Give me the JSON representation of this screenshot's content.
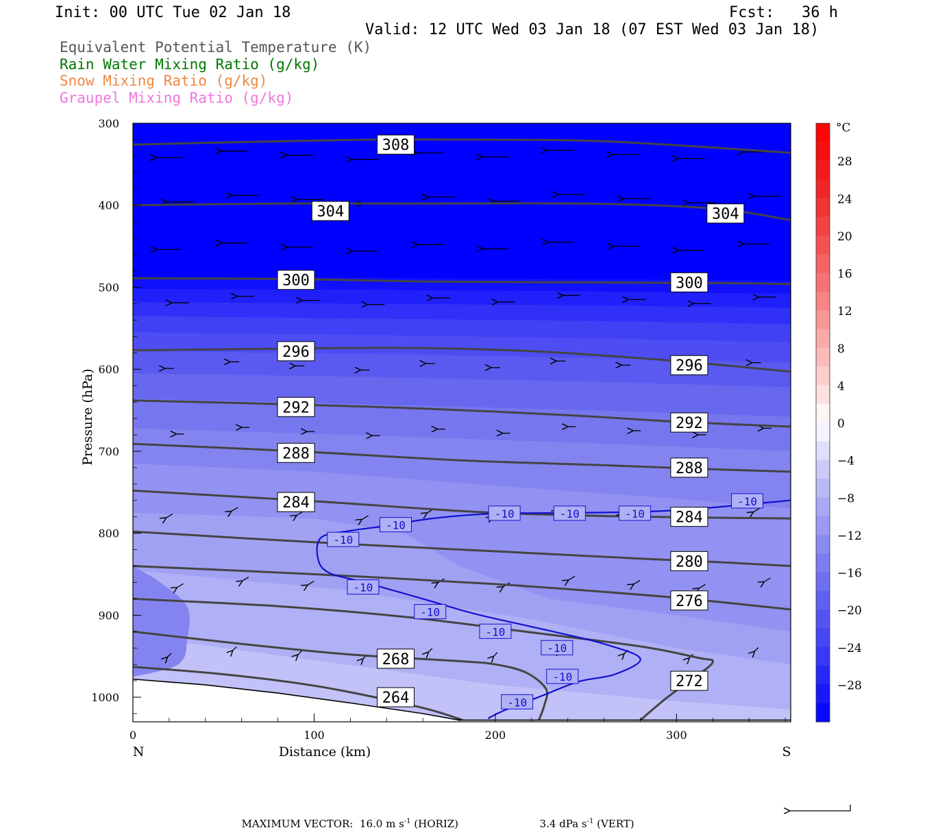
{
  "header": {
    "init": "Init: 00 UTC Tue 02 Jan 18",
    "fcst": "Fcst:   36 h",
    "valid": "Valid: 12 UTC Wed 03 Jan 18 (07 EST Wed 03 Jan 18)"
  },
  "legend": [
    {
      "label": "Equivalent Potential Temperature (K)",
      "color": "#555555"
    },
    {
      "label": "Rain Water Mixing Ratio (g/kg)",
      "color": "#007700"
    },
    {
      "label": "Snow Mixing Ratio (g/kg)",
      "color": "#ee8844"
    },
    {
      "label": "Graupel Mixing Ratio (g/kg)",
      "color": "#ee77dd"
    }
  ],
  "chart_data": {
    "type": "cross-section",
    "xlabel": "Distance (km)",
    "ylabel": "Pressure (hPa)",
    "xlim": [
      0,
      363
    ],
    "ylim": [
      1030,
      300
    ],
    "x_ticks": [
      0,
      100,
      200,
      300
    ],
    "y_ticks": [
      300,
      400,
      500,
      600,
      700,
      800,
      900,
      1000
    ],
    "x_end_labels": {
      "left": "N",
      "right": "S"
    },
    "colorbar": {
      "unit": "°C",
      "ticks": [
        28,
        24,
        20,
        16,
        12,
        8,
        4,
        0,
        -4,
        -8,
        -12,
        -16,
        -20,
        -24,
        -28
      ],
      "min": -32,
      "max": 32
    },
    "theta_e_contours": [
      {
        "value": 308,
        "points": [
          [
            0,
            326
          ],
          [
            60,
            323
          ],
          [
            130,
            320
          ],
          [
            180,
            320
          ],
          [
            260,
            322
          ],
          [
            363,
            336
          ]
        ],
        "labels": [
          [
            145,
            326
          ]
        ]
      },
      {
        "value": 304,
        "points": [
          [
            0,
            400
          ],
          [
            80,
            398
          ],
          [
            150,
            398
          ],
          [
            250,
            398
          ],
          [
            320,
            404
          ],
          [
            363,
            418
          ]
        ],
        "labels": [
          [
            109,
            407
          ],
          [
            327,
            410
          ]
        ]
      },
      {
        "value": 300,
        "points": [
          [
            0,
            489
          ],
          [
            90,
            490
          ],
          [
            160,
            493
          ],
          [
            250,
            494
          ],
          [
            330,
            495
          ],
          [
            363,
            496
          ]
        ],
        "labels": [
          [
            90,
            491
          ],
          [
            307,
            494
          ]
        ]
      },
      {
        "value": 296,
        "points": [
          [
            0,
            577
          ],
          [
            80,
            575
          ],
          [
            150,
            574
          ],
          [
            220,
            578
          ],
          [
            300,
            590
          ],
          [
            363,
            603
          ]
        ],
        "labels": [
          [
            90,
            578
          ],
          [
            307,
            595
          ]
        ]
      },
      {
        "value": 292,
        "points": [
          [
            0,
            638
          ],
          [
            90,
            643
          ],
          [
            160,
            648
          ],
          [
            240,
            656
          ],
          [
            300,
            664
          ],
          [
            363,
            670
          ]
        ],
        "labels": [
          [
            90,
            646
          ],
          [
            307,
            665
          ]
        ]
      },
      {
        "value": 288,
        "points": [
          [
            0,
            691
          ],
          [
            90,
            700
          ],
          [
            180,
            711
          ],
          [
            260,
            717
          ],
          [
            320,
            722
          ],
          [
            363,
            725
          ]
        ],
        "labels": [
          [
            90,
            702
          ],
          [
            307,
            720
          ]
        ]
      },
      {
        "value": 284,
        "points": [
          [
            0,
            748
          ],
          [
            100,
            761
          ],
          [
            190,
            774
          ],
          [
            260,
            779
          ],
          [
            320,
            781
          ],
          [
            363,
            782
          ]
        ],
        "labels": [
          [
            90,
            762
          ],
          [
            307,
            780
          ]
        ]
      },
      {
        "value": 280,
        "points": [
          [
            0,
            798
          ],
          [
            100,
            811
          ],
          [
            200,
            822
          ],
          [
            280,
            831
          ],
          [
            330,
            836
          ],
          [
            363,
            840
          ]
        ],
        "labels": [
          [
            307,
            834
          ]
        ]
      },
      {
        "value": 276,
        "points": [
          [
            0,
            840
          ],
          [
            100,
            850
          ],
          [
            200,
            862
          ],
          [
            280,
            875
          ],
          [
            320,
            883
          ],
          [
            363,
            893
          ]
        ],
        "labels": [
          [
            307,
            882
          ]
        ]
      },
      {
        "value": 272,
        "points": [
          [
            0,
            880
          ],
          [
            80,
            889
          ],
          [
            150,
            902
          ],
          [
            220,
            921
          ],
          [
            280,
            938
          ],
          [
            312,
            952
          ],
          [
            320,
            957
          ],
          [
            310,
            976
          ],
          [
            295,
            1000
          ],
          [
            280,
            1028
          ]
        ],
        "labels": [
          [
            307,
            980
          ]
        ]
      },
      {
        "value": 268,
        "points": [
          [
            0,
            920
          ],
          [
            60,
            935
          ],
          [
            120,
            948
          ],
          [
            180,
            956
          ],
          [
            200,
            960
          ],
          [
            217,
            970
          ],
          [
            228,
            990
          ],
          [
            227,
            1010
          ],
          [
            224,
            1028
          ]
        ],
        "labels": [
          [
            145,
            953
          ]
        ]
      },
      {
        "value": 264,
        "points": [
          [
            0,
            963
          ],
          [
            50,
            972
          ],
          [
            100,
            986
          ],
          [
            140,
            1003
          ],
          [
            165,
            1016
          ],
          [
            182,
            1028
          ]
        ],
        "labels": [
          [
            145,
            1000
          ]
        ]
      }
    ],
    "temperature_contour_-10C": {
      "points": [
        [
          363,
          760
        ],
        [
          300,
          772
        ],
        [
          250,
          775
        ],
        [
          200,
          776
        ],
        [
          165,
          782
        ],
        [
          140,
          791
        ],
        [
          120,
          797
        ],
        [
          104,
          805
        ],
        [
          102,
          830
        ],
        [
          108,
          848
        ],
        [
          128,
          860
        ],
        [
          160,
          880
        ],
        [
          190,
          899
        ],
        [
          230,
          919
        ],
        [
          260,
          935
        ],
        [
          280,
          953
        ],
        [
          266,
          972
        ],
        [
          246,
          981
        ],
        [
          226,
          998
        ],
        [
          204,
          1017
        ],
        [
          196,
          1026
        ]
      ],
      "label": "-10",
      "labels": [
        [
          339,
          761
        ],
        [
          277,
          776
        ],
        [
          241,
          776
        ],
        [
          205,
          776
        ],
        [
          145,
          790
        ],
        [
          116,
          808
        ],
        [
          127,
          866
        ],
        [
          164,
          896
        ],
        [
          200,
          920
        ],
        [
          234,
          940
        ],
        [
          237,
          975
        ],
        [
          212,
          1006
        ]
      ]
    },
    "vector_reference": {
      "horiz_label": "MAXIMUM VECTOR:  16.0 m s",
      "horiz_unit": "-1",
      "horiz_suffix": " (HORIZ)",
      "vert_label": "3.4 dPa s",
      "vert_unit": "-1",
      "vert_suffix": " (VERT)"
    }
  }
}
